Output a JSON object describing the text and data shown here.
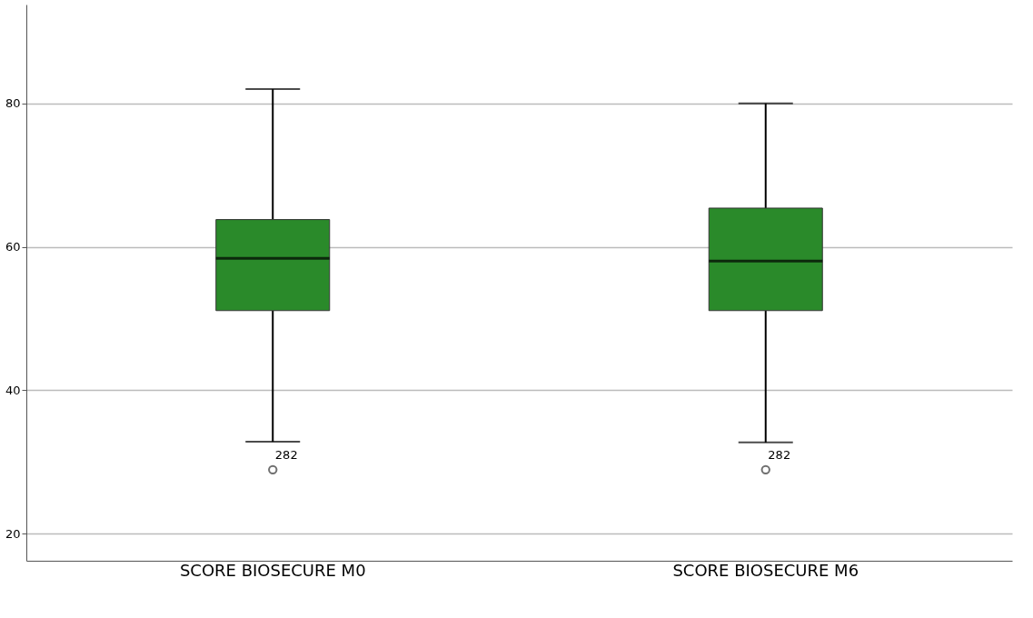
{
  "chart_data": {
    "type": "box",
    "categories": [
      "SCORE BIOSECURE M0",
      "SCORE BIOSECURE M6"
    ],
    "boxes": [
      {
        "low": 32.8,
        "q1": 51.1,
        "median": 58.4,
        "q3": 63.8,
        "high": 82.0,
        "outliers": [
          28.9
        ]
      },
      {
        "low": 32.7,
        "q1": 51.1,
        "median": 58.0,
        "q3": 65.4,
        "high": 80.0,
        "outliers": [
          28.9
        ]
      }
    ],
    "color": "#2a8a2a",
    "ylim": [
      16.2,
      93.8
    ],
    "yticks": [
      20,
      40,
      60,
      80
    ],
    "grid": "y",
    "annotations": [
      "282",
      "282"
    ]
  }
}
